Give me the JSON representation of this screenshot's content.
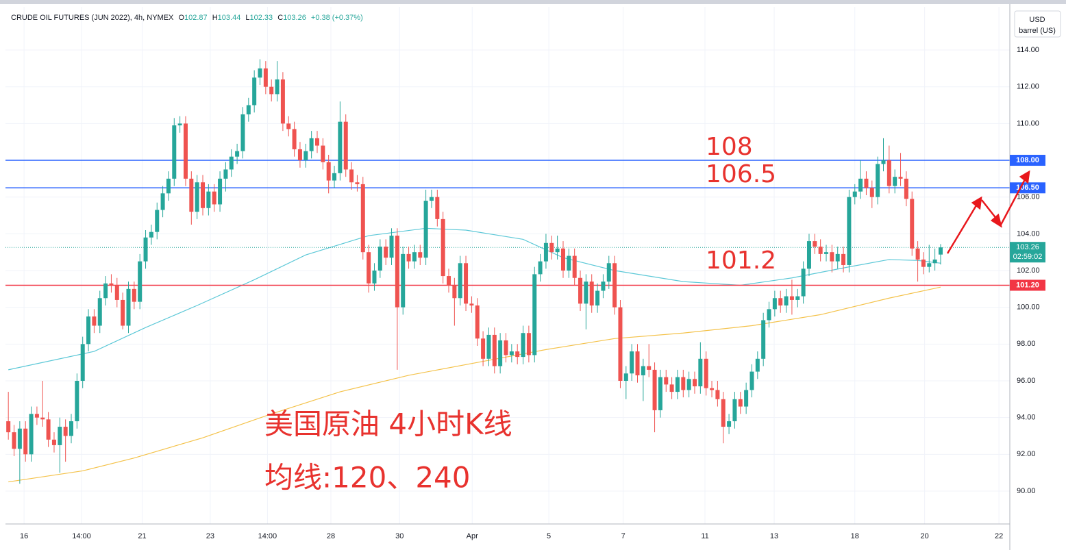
{
  "chart_data": {
    "type": "candlestick",
    "header": {
      "symbol": "CRUDE OIL FUTURES (JUN 2022), 4h, NYMEX",
      "o_label": "O",
      "open": 102.87,
      "h_label": "H",
      "high": 103.44,
      "l_label": "L",
      "low": 102.33,
      "c_label": "C",
      "close": 103.26,
      "change": "+0.38 (+0.37%)"
    },
    "units": [
      "USD",
      "barrel (US)"
    ],
    "up_color": "#26a69a",
    "down_color": "#ef5350",
    "xlim": [
      -0.5,
      175.1
    ],
    "xticks": [
      {
        "value": 2.75,
        "label": "16"
      },
      {
        "value": 12.8,
        "label": "14:00"
      },
      {
        "value": 23.4,
        "label": "21"
      },
      {
        "value": 35.3,
        "label": "23"
      },
      {
        "value": 45.3,
        "label": "14:00"
      },
      {
        "value": 56.4,
        "label": "28"
      },
      {
        "value": 68.4,
        "label": "30"
      },
      {
        "value": 81.1,
        "label": "Apr"
      },
      {
        "value": 94.5,
        "label": "5"
      },
      {
        "value": 107.5,
        "label": "7"
      },
      {
        "value": 121.8,
        "label": "11"
      },
      {
        "value": 133.9,
        "label": "13"
      },
      {
        "value": 148,
        "label": "18"
      },
      {
        "value": 160.2,
        "label": "20"
      },
      {
        "value": 173.2,
        "label": "22"
      }
    ],
    "ylim": [
      88.21,
      116.35
    ],
    "yticks": [
      {
        "value": 90,
        "label": "90.00"
      },
      {
        "value": 92,
        "label": "92.00"
      },
      {
        "value": 94,
        "label": "94.00"
      },
      {
        "value": 96,
        "label": "96.00"
      },
      {
        "value": 98,
        "label": "98.00"
      },
      {
        "value": 100,
        "label": "100.00"
      },
      {
        "value": 102,
        "label": "102.00"
      },
      {
        "value": 104,
        "label": "104.00"
      },
      {
        "value": 106,
        "label": "106.00"
      },
      {
        "value": 108,
        "label": "108.00"
      },
      {
        "value": 110,
        "label": "110.00"
      },
      {
        "value": 112,
        "label": "112.00"
      },
      {
        "value": 114,
        "label": "114.00"
      }
    ],
    "grid": true,
    "candles": [
      [
        93.8,
        95.4,
        92.8,
        93.2
      ],
      [
        93.2,
        93.6,
        91.9,
        92.3
      ],
      [
        92.3,
        93.8,
        90.4,
        93.4
      ],
      [
        93.4,
        93.8,
        91.6,
        92.0
      ],
      [
        92.0,
        94.6,
        91.6,
        94.2
      ],
      [
        94.2,
        94.6,
        93.6,
        94.0
      ],
      [
        94.0,
        96.0,
        93.5,
        93.9
      ],
      [
        93.9,
        94.3,
        92.4,
        92.8
      ],
      [
        92.8,
        93.2,
        92.1,
        92.5
      ],
      [
        92.5,
        94.0,
        91.0,
        93.5
      ],
      [
        93.5,
        93.9,
        91.6,
        93.0
      ],
      [
        93.0,
        94.2,
        92.6,
        93.8
      ],
      [
        93.8,
        96.4,
        93.4,
        96.0
      ],
      [
        96.0,
        98.4,
        95.6,
        98.0
      ],
      [
        98.0,
        99.9,
        97.6,
        99.5
      ],
      [
        99.5,
        99.9,
        98.6,
        99.0
      ],
      [
        99.0,
        100.9,
        98.6,
        100.5
      ],
      [
        100.5,
        101.7,
        100.1,
        101.3
      ],
      [
        101.3,
        101.8,
        100.8,
        101.2
      ],
      [
        101.2,
        101.6,
        100.0,
        100.4
      ],
      [
        100.4,
        100.8,
        98.8,
        99.0
      ],
      [
        99.0,
        101.4,
        98.6,
        101.0
      ],
      [
        101.0,
        101.4,
        99.9,
        100.3
      ],
      [
        100.3,
        102.9,
        99.9,
        102.5
      ],
      [
        102.5,
        104.2,
        102.1,
        103.8
      ],
      [
        103.8,
        104.5,
        103.4,
        104.1
      ],
      [
        104.1,
        105.7,
        103.7,
        105.3
      ],
      [
        105.3,
        106.6,
        104.9,
        106.2
      ],
      [
        106.2,
        107.4,
        105.8,
        107.0
      ],
      [
        107.0,
        110.3,
        106.6,
        109.9
      ],
      [
        109.9,
        110.4,
        109.5,
        110.0
      ],
      [
        110.0,
        110.4,
        106.6,
        107.0
      ],
      [
        107.0,
        107.4,
        104.5,
        105.2
      ],
      [
        105.2,
        107.2,
        104.8,
        106.8
      ],
      [
        106.8,
        107.2,
        105.0,
        105.4
      ],
      [
        105.4,
        106.7,
        105.0,
        106.3
      ],
      [
        106.3,
        106.7,
        105.2,
        105.6
      ],
      [
        105.6,
        107.4,
        105.2,
        107.0
      ],
      [
        107.0,
        107.9,
        106.3,
        107.5
      ],
      [
        107.5,
        108.6,
        107.1,
        108.2
      ],
      [
        108.2,
        108.9,
        107.8,
        108.5
      ],
      [
        108.5,
        110.9,
        108.1,
        110.5
      ],
      [
        110.5,
        111.4,
        110.1,
        111.0
      ],
      [
        111.0,
        112.9,
        110.6,
        112.5
      ],
      [
        112.5,
        113.5,
        112.1,
        113.0
      ],
      [
        113.0,
        113.4,
        111.6,
        112.0
      ],
      [
        112.0,
        112.4,
        111.2,
        111.6
      ],
      [
        111.6,
        113.4,
        111.2,
        112.4
      ],
      [
        112.4,
        112.8,
        109.6,
        110.0
      ],
      [
        110.0,
        110.4,
        109.3,
        109.7
      ],
      [
        109.7,
        110.1,
        108.2,
        108.6
      ],
      [
        108.6,
        109.0,
        107.6,
        108.0
      ],
      [
        108.0,
        108.9,
        107.6,
        108.5
      ],
      [
        108.5,
        109.6,
        108.1,
        109.2
      ],
      [
        109.2,
        109.6,
        108.4,
        108.8
      ],
      [
        108.8,
        109.2,
        107.5,
        107.9
      ],
      [
        107.9,
        108.3,
        106.2,
        106.9
      ],
      [
        106.9,
        107.7,
        106.5,
        107.3
      ],
      [
        107.3,
        111.2,
        106.9,
        110.1
      ],
      [
        110.1,
        110.5,
        107.1,
        107.5
      ],
      [
        107.5,
        107.9,
        106.4,
        106.8
      ],
      [
        106.8,
        107.2,
        106.3,
        106.7
      ],
      [
        106.7,
        107.1,
        102.6,
        103.0
      ],
      [
        103.0,
        103.4,
        100.8,
        101.3
      ],
      [
        101.3,
        102.4,
        100.9,
        102.0
      ],
      [
        102.0,
        103.7,
        101.6,
        103.3
      ],
      [
        103.3,
        103.7,
        102.3,
        102.7
      ],
      [
        102.7,
        104.3,
        102.3,
        103.9
      ],
      [
        103.9,
        104.3,
        96.6,
        100.0
      ],
      [
        100.0,
        103.3,
        99.6,
        102.9
      ],
      [
        102.9,
        103.3,
        102.1,
        102.5
      ],
      [
        102.5,
        103.4,
        102.1,
        103.0
      ],
      [
        103.0,
        103.4,
        102.3,
        102.7
      ],
      [
        102.7,
        106.4,
        102.3,
        105.8
      ],
      [
        105.8,
        106.4,
        105.4,
        106.0
      ],
      [
        106.0,
        106.4,
        104.4,
        104.8
      ],
      [
        104.8,
        105.2,
        101.3,
        101.7
      ],
      [
        101.7,
        102.1,
        100.8,
        101.2
      ],
      [
        101.2,
        101.6,
        99.0,
        100.5
      ],
      [
        100.5,
        102.8,
        100.1,
        102.4
      ],
      [
        102.4,
        102.8,
        99.8,
        100.2
      ],
      [
        100.2,
        100.6,
        99.7,
        100.1
      ],
      [
        100.1,
        100.5,
        97.9,
        98.3
      ],
      [
        98.3,
        98.7,
        96.8,
        97.2
      ],
      [
        97.2,
        98.9,
        96.8,
        98.5
      ],
      [
        98.5,
        98.9,
        96.4,
        96.8
      ],
      [
        96.8,
        98.6,
        96.4,
        98.2
      ],
      [
        98.2,
        98.6,
        97.0,
        97.4
      ],
      [
        97.4,
        98.0,
        97.0,
        97.6
      ],
      [
        97.6,
        98.0,
        96.9,
        97.3
      ],
      [
        97.3,
        99.0,
        96.9,
        98.6
      ],
      [
        98.6,
        99.0,
        97.0,
        97.4
      ],
      [
        97.4,
        102.2,
        97.0,
        101.8
      ],
      [
        101.8,
        102.9,
        101.4,
        102.5
      ],
      [
        102.5,
        104.0,
        102.1,
        103.5
      ],
      [
        103.5,
        103.9,
        102.6,
        103.0
      ],
      [
        103.0,
        103.9,
        102.6,
        103.2
      ],
      [
        103.2,
        103.6,
        101.6,
        102.0
      ],
      [
        102.0,
        103.2,
        101.6,
        102.8
      ],
      [
        102.8,
        103.2,
        101.2,
        101.6
      ],
      [
        101.6,
        102.0,
        99.8,
        100.2
      ],
      [
        100.2,
        101.8,
        98.8,
        101.4
      ],
      [
        101.4,
        101.8,
        99.7,
        100.1
      ],
      [
        100.1,
        101.3,
        99.7,
        100.9
      ],
      [
        100.9,
        101.8,
        100.5,
        101.4
      ],
      [
        101.4,
        102.8,
        101.0,
        102.4
      ],
      [
        102.4,
        102.8,
        99.6,
        100.0
      ],
      [
        100.0,
        100.4,
        95.6,
        96.0
      ],
      [
        96.0,
        96.8,
        95.0,
        96.4
      ],
      [
        96.4,
        98.0,
        96.0,
        97.6
      ],
      [
        97.6,
        98.0,
        95.9,
        96.3
      ],
      [
        96.3,
        97.2,
        94.9,
        96.8
      ],
      [
        96.8,
        98.0,
        96.2,
        96.6
      ],
      [
        96.6,
        97.0,
        93.2,
        94.4
      ],
      [
        94.4,
        96.6,
        94.0,
        96.2
      ],
      [
        96.2,
        96.6,
        95.4,
        95.8
      ],
      [
        95.8,
        96.2,
        95.0,
        95.4
      ],
      [
        95.4,
        96.6,
        95.0,
        96.2
      ],
      [
        96.2,
        96.6,
        95.1,
        95.5
      ],
      [
        95.5,
        96.5,
        95.1,
        96.1
      ],
      [
        96.1,
        96.5,
        95.3,
        95.7
      ],
      [
        95.7,
        98.1,
        95.3,
        97.2
      ],
      [
        97.2,
        97.6,
        95.2,
        95.6
      ],
      [
        95.6,
        96.0,
        95.1,
        95.5
      ],
      [
        95.5,
        96.0,
        94.6,
        95.0
      ],
      [
        95.0,
        95.4,
        92.6,
        93.5
      ],
      [
        93.5,
        94.2,
        93.1,
        93.8
      ],
      [
        93.8,
        95.4,
        93.4,
        95.0
      ],
      [
        95.0,
        95.4,
        94.2,
        94.6
      ],
      [
        94.6,
        95.9,
        94.2,
        95.5
      ],
      [
        95.5,
        96.9,
        95.1,
        96.5
      ],
      [
        96.5,
        97.6,
        96.1,
        97.2
      ],
      [
        97.2,
        99.7,
        96.8,
        99.3
      ],
      [
        99.3,
        100.3,
        98.9,
        99.9
      ],
      [
        99.9,
        100.9,
        99.5,
        100.5
      ],
      [
        100.5,
        100.9,
        99.7,
        100.1
      ],
      [
        100.1,
        101.0,
        99.7,
        100.6
      ],
      [
        100.6,
        101.5,
        99.6,
        100.4
      ],
      [
        100.4,
        101.0,
        100.0,
        100.6
      ],
      [
        100.6,
        102.5,
        100.2,
        102.1
      ],
      [
        102.1,
        104.0,
        101.7,
        103.6
      ],
      [
        103.6,
        104.0,
        102.9,
        103.3
      ],
      [
        103.3,
        103.7,
        102.5,
        102.9
      ],
      [
        102.9,
        103.4,
        102.5,
        103.0
      ],
      [
        103.0,
        103.4,
        101.9,
        102.5
      ],
      [
        102.5,
        103.3,
        102.1,
        102.9
      ],
      [
        102.9,
        103.3,
        101.9,
        102.3
      ],
      [
        102.3,
        106.4,
        101.9,
        106.0
      ],
      [
        106.0,
        106.7,
        105.6,
        106.3
      ],
      [
        106.3,
        108.0,
        105.9,
        107.0
      ],
      [
        107.0,
        107.4,
        106.1,
        106.5
      ],
      [
        106.5,
        106.9,
        105.4,
        106.0
      ],
      [
        106.0,
        108.2,
        105.6,
        107.8
      ],
      [
        107.8,
        109.2,
        107.4,
        108.0
      ],
      [
        108.0,
        108.8,
        106.2,
        106.6
      ],
      [
        106.6,
        107.5,
        106.2,
        107.1
      ],
      [
        107.1,
        108.4,
        106.6,
        107.0
      ],
      [
        107.0,
        107.4,
        105.5,
        105.9
      ],
      [
        105.9,
        106.3,
        102.8,
        103.2
      ],
      [
        103.2,
        103.6,
        101.4,
        102.6
      ],
      [
        102.6,
        103.0,
        101.8,
        102.2
      ],
      [
        102.2,
        103.4,
        101.9,
        102.4
      ],
      [
        102.4,
        103.2,
        102.0,
        102.6
      ],
      [
        102.87,
        103.44,
        102.33,
        103.26
      ]
    ],
    "moving_averages": [
      {
        "color": "#5cc8d7",
        "x": [
          0,
          15,
          24,
          33,
          43,
          52,
          63,
          73,
          80,
          90,
          97,
          106,
          118,
          128,
          137,
          147,
          154,
          159,
          163
        ],
        "values": [
          96.6,
          97.6,
          98.9,
          100.1,
          101.5,
          102.85,
          103.9,
          104.3,
          104.2,
          103.7,
          102.7,
          102.0,
          101.4,
          101.2,
          101.6,
          102.2,
          102.6,
          102.55,
          102.4
        ]
      },
      {
        "color": "#f4c24a",
        "x": [
          0,
          13,
          22,
          34,
          46,
          58,
          70,
          82,
          94,
          106,
          118,
          130,
          142,
          154,
          163
        ],
        "values": [
          90.5,
          91.1,
          91.8,
          92.9,
          94.2,
          95.4,
          96.3,
          97.0,
          97.7,
          98.3,
          98.6,
          99.0,
          99.6,
          100.5,
          101.1
        ]
      }
    ],
    "levels": [
      {
        "value": 108,
        "label": "108.00",
        "color": "#2962ff"
      },
      {
        "value": 106.5,
        "label": "106.50",
        "color": "#2962ff"
      },
      {
        "value": 101.2,
        "label": "101.20",
        "color": "#f23645"
      }
    ],
    "last_price": {
      "value": 103.26,
      "countdown": "02:59:02",
      "color": "#26a69a"
    },
    "annotations": [
      "108",
      "106.5",
      "101.2",
      "美国原油 4小时K线",
      "均线:120、240"
    ]
  }
}
